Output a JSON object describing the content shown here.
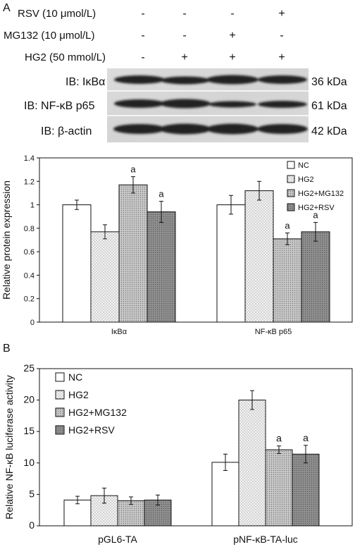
{
  "panelA": {
    "label": "A",
    "conditions": [
      {
        "name": "RSV (10 μmol/L)",
        "signs": [
          "-",
          "-",
          "-",
          "+"
        ]
      },
      {
        "name": "MG132 (10 μmol/L)",
        "signs": [
          "-",
          "-",
          "+",
          "-"
        ]
      },
      {
        "name": "HG2 (50 mmol/L)",
        "signs": [
          "-",
          "+",
          "+",
          "+"
        ]
      }
    ],
    "blots": [
      {
        "label": "IB: IκBα",
        "kda": "36 kDa"
      },
      {
        "label": "IB: NF-κB p65",
        "kda": "61 kDa"
      },
      {
        "label": "IB: β-actin",
        "kda": "42 kDa"
      }
    ]
  },
  "panelB": {
    "label": "B"
  },
  "colors": {
    "NC": "#ffffff",
    "HG2": "#e6e6e6",
    "HG2+MG132": "#bdbdbd",
    "HG2+RSV": "#8c8c8c"
  },
  "chart_data": [
    {
      "type": "bar",
      "ylabel": "Relative protein expression",
      "categories": [
        "IκBα",
        "NF-κB p65"
      ],
      "ylim": [
        0,
        1.4
      ],
      "yticks": [
        0,
        0.2,
        0.4,
        0.6,
        0.8,
        1,
        1.2,
        1.4
      ],
      "legend_position": "top-right",
      "series": [
        {
          "name": "NC",
          "values": [
            1.0,
            1.0
          ],
          "errors": [
            0.04,
            0.08
          ]
        },
        {
          "name": "HG2",
          "values": [
            0.77,
            1.12
          ],
          "errors": [
            0.06,
            0.08
          ]
        },
        {
          "name": "HG2+MG132",
          "values": [
            1.17,
            0.71
          ],
          "errors": [
            0.07,
            0.05
          ]
        },
        {
          "name": "HG2+RSV",
          "values": [
            0.94,
            0.77
          ],
          "errors": [
            0.09,
            0.08
          ]
        }
      ],
      "annotations": [
        {
          "category": "IκBα",
          "series": "HG2+MG132",
          "text": "a"
        },
        {
          "category": "IκBα",
          "series": "HG2+RSV",
          "text": "a"
        },
        {
          "category": "NF-κB p65",
          "series": "HG2+MG132",
          "text": "a"
        },
        {
          "category": "NF-κB p65",
          "series": "HG2+RSV",
          "text": "a"
        }
      ]
    },
    {
      "type": "bar",
      "ylabel": "Relative NF-κB luciferase activity",
      "categories": [
        "pGL6-TA",
        "pNF-κB-TA-luc"
      ],
      "ylim": [
        0,
        25
      ],
      "yticks": [
        0,
        5,
        10,
        15,
        20,
        25
      ],
      "legend_position": "top-left",
      "series": [
        {
          "name": "NC",
          "values": [
            4.1,
            10.1
          ],
          "errors": [
            0.6,
            1.3
          ]
        },
        {
          "name": "HG2",
          "values": [
            4.8,
            20.0
          ],
          "errors": [
            1.2,
            1.5
          ]
        },
        {
          "name": "HG2+MG132",
          "values": [
            4.0,
            12.1
          ],
          "errors": [
            0.6,
            0.6
          ]
        },
        {
          "name": "HG2+RSV",
          "values": [
            4.1,
            11.4
          ],
          "errors": [
            0.8,
            1.4
          ]
        }
      ],
      "annotations": [
        {
          "category": "pNF-κB-TA-luc",
          "series": "HG2+MG132",
          "text": "a"
        },
        {
          "category": "pNF-κB-TA-luc",
          "series": "HG2+RSV",
          "text": "a"
        }
      ]
    }
  ]
}
